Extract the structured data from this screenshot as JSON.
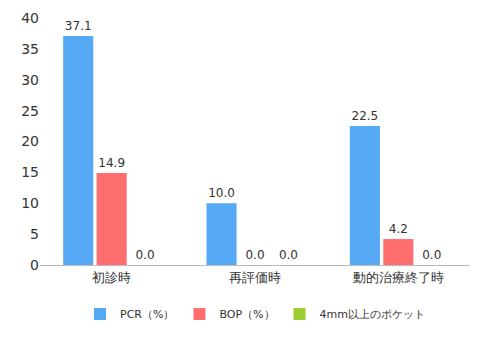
{
  "chart_data": {
    "type": "bar",
    "categories": [
      "初診時",
      "再評価時",
      "動的治療終了時"
    ],
    "series": [
      {
        "name": "PCR（%）",
        "color": "#55a9f5",
        "values": [
          37.1,
          10,
          22.5
        ],
        "value_labels": [
          "37.1",
          "10.0",
          "22.5"
        ]
      },
      {
        "name": "BOP（%）",
        "color": "#ff6e6e",
        "values": [
          14.9,
          0,
          4.2
        ],
        "value_labels": [
          "14.9",
          "0.0",
          "4.2"
        ]
      },
      {
        "name": "4mm以上のポケット",
        "color": "#9acd32",
        "values": [
          0,
          0,
          0
        ],
        "value_labels": [
          "0.0",
          "0.0",
          "0.0"
        ]
      }
    ],
    "ylim": [
      0,
      40
    ],
    "yticks": [
      0,
      5,
      10,
      15,
      20,
      25,
      30,
      35,
      40
    ],
    "grid": false,
    "legend": "bottom",
    "data_labels": true
  }
}
